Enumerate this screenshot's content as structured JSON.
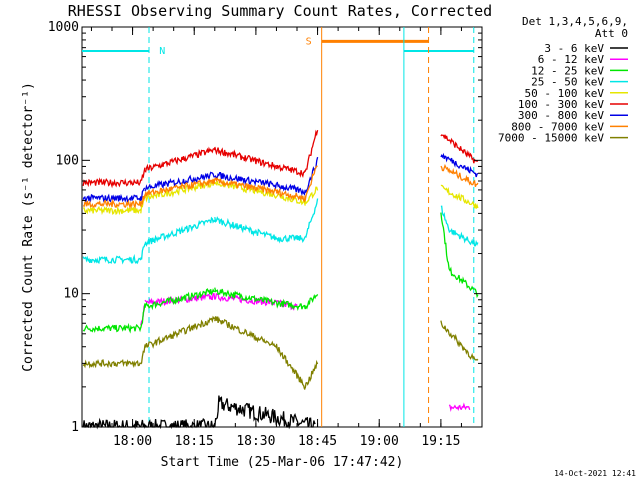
{
  "chart_data": {
    "type": "line",
    "title": "RHESSI Observing Summary Count Rates, Corrected",
    "ylabel": "Corrected Count Rate (s⁻¹ detector⁻¹)",
    "xlabel": "Start Time (25-Mar-06 17:47:42)",
    "footer": "14-Oct-2021 12:41",
    "legend_title": [
      "Det 1,3,4,5,6,9,",
      "Att 0"
    ],
    "legend_placement": "right",
    "y_scale": "log",
    "ylim": [
      1,
      1000
    ],
    "y_ticks": [
      {
        "value": 1,
        "label": "1"
      },
      {
        "value": 10,
        "label": "10"
      },
      {
        "value": 100,
        "label": "100"
      },
      {
        "value": 1000,
        "label": "1000"
      }
    ],
    "xlim": [
      "17:47:42",
      "19:25:00"
    ],
    "x_ticks": [
      {
        "time": "18:00",
        "label": "18:00"
      },
      {
        "time": "18:15",
        "label": "18:15"
      },
      {
        "time": "18:30",
        "label": "18:30"
      },
      {
        "time": "18:45",
        "label": "18:45"
      },
      {
        "time": "19:00",
        "label": "19:00"
      },
      {
        "time": "19:15",
        "label": "19:15"
      }
    ],
    "flags": {
      "night": [
        {
          "start": "17:47:42",
          "end": "18:04:00",
          "level": 660,
          "label": ""
        },
        {
          "start": "19:06:00",
          "end": "19:23:00",
          "level": 660,
          "label": ""
        }
      ],
      "night_labels": [
        {
          "time": "18:06:00",
          "label": "N"
        }
      ],
      "saa": {
        "start": "18:46:00",
        "end": "19:12:00",
        "level": 780,
        "label": "S"
      },
      "markers": [
        {
          "time": "18:04:00",
          "color": "#00e6e6",
          "dashed": true
        },
        {
          "time": "19:23:00",
          "color": "#00e6e6",
          "dashed": true
        },
        {
          "time": "19:06:00",
          "color": "#00e6e6",
          "dashed": false
        },
        {
          "time": "18:46:00",
          "color": "#ff8000",
          "dashed": false
        },
        {
          "time": "19:12:00",
          "color": "#ff8000",
          "dashed": true
        }
      ]
    },
    "series": [
      {
        "name": "3 - 6 keV",
        "color": "#000000",
        "x": [
          "17:48",
          "18:20",
          "18:21",
          "18:44:30"
        ],
        "y": [
          1,
          1,
          1.5,
          1
        ],
        "noisy": true
      },
      {
        "name": "6 - 12 keV",
        "color": "#ff00ff",
        "x": [
          "18:02",
          "18:03",
          "18:20",
          "18:35",
          "18:40",
          "19:17",
          "19:22"
        ],
        "y": [
          5.5,
          8.5,
          9.5,
          8.5,
          8,
          1.4,
          1.4
        ]
      },
      {
        "name": "12 - 25 keV",
        "color": "#00e600",
        "x": [
          "17:48",
          "18:02",
          "18:03",
          "18:20",
          "18:35",
          "18:42",
          "18:45",
          "19:15",
          "19:17",
          "19:24"
        ],
        "y": [
          5.5,
          5.5,
          8,
          10.5,
          8.5,
          8,
          10,
          42,
          15,
          10
        ]
      },
      {
        "name": "25 - 50 keV",
        "color": "#00e6e6",
        "x": [
          "17:48",
          "18:02",
          "18:03",
          "18:20",
          "18:35",
          "18:42",
          "18:45",
          "19:15",
          "19:17",
          "19:24"
        ],
        "y": [
          18,
          18,
          24,
          36,
          26,
          26,
          50,
          45,
          30,
          23
        ]
      },
      {
        "name": "50 - 100 keV",
        "color": "#e6e600",
        "x": [
          "17:48",
          "18:02",
          "18:03",
          "18:20",
          "18:35",
          "18:42",
          "18:45",
          "19:15",
          "19:24"
        ],
        "y": [
          42,
          42,
          52,
          68,
          55,
          48,
          62,
          62,
          45
        ]
      },
      {
        "name": "100 - 300 keV",
        "color": "#e60000",
        "x": [
          "17:48",
          "18:02",
          "18:03",
          "18:20",
          "18:35",
          "18:42",
          "18:45",
          "19:15",
          "19:24"
        ],
        "y": [
          68,
          68,
          85,
          120,
          90,
          80,
          175,
          160,
          95
        ]
      },
      {
        "name": "300 - 800 keV",
        "color": "#0000e6",
        "x": [
          "17:48",
          "18:02",
          "18:03",
          "18:20",
          "18:35",
          "18:42",
          "18:45",
          "19:15",
          "19:24"
        ],
        "y": [
          52,
          52,
          62,
          78,
          65,
          58,
          100,
          110,
          78
        ]
      },
      {
        "name": "800 - 7000 keV",
        "color": "#ff8000",
        "x": [
          "17:48",
          "18:02",
          "18:03",
          "18:20",
          "18:35",
          "18:42",
          "18:45",
          "19:15",
          "19:24"
        ],
        "y": [
          47,
          47,
          56,
          70,
          58,
          52,
          95,
          90,
          65
        ]
      },
      {
        "name": "7000 - 15000 keV",
        "color": "#808000",
        "x": [
          "17:48",
          "18:02",
          "18:03",
          "18:20",
          "18:35",
          "18:42",
          "18:45",
          "19:15",
          "19:24"
        ],
        "y": [
          3,
          3,
          4,
          6.5,
          4,
          2,
          3,
          6,
          3
        ]
      }
    ]
  }
}
